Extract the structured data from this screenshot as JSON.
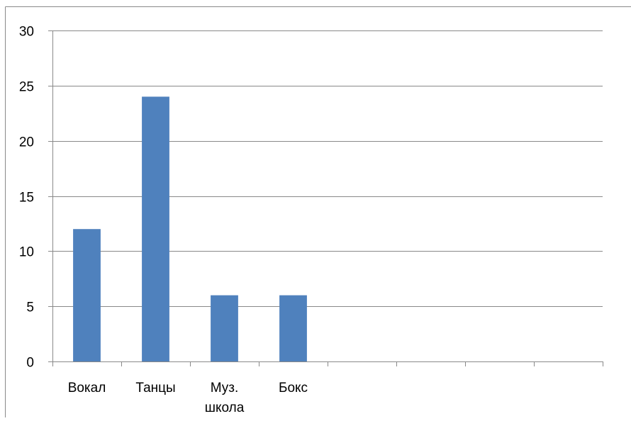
{
  "chart_data": {
    "type": "bar",
    "title": "",
    "xlabel": "",
    "ylabel": "",
    "categories": [
      "Вокал",
      "Танцы",
      "Муз. школа",
      "Бокс",
      "",
      "",
      "",
      ""
    ],
    "category_lines": [
      [
        "Вокал"
      ],
      [
        "Танцы"
      ],
      [
        "Муз.",
        "школа"
      ],
      [
        "Бокс"
      ],
      [],
      [],
      [],
      []
    ],
    "values": [
      12,
      24,
      6,
      6,
      null,
      null,
      null,
      null
    ],
    "ylim": [
      0,
      30
    ],
    "yticks": [
      0,
      5,
      10,
      15,
      20,
      25,
      30
    ],
    "grid": true,
    "legend": "none",
    "bar_color": "#4F81BD",
    "grid_color": "#898989",
    "text_color": "#000000"
  }
}
